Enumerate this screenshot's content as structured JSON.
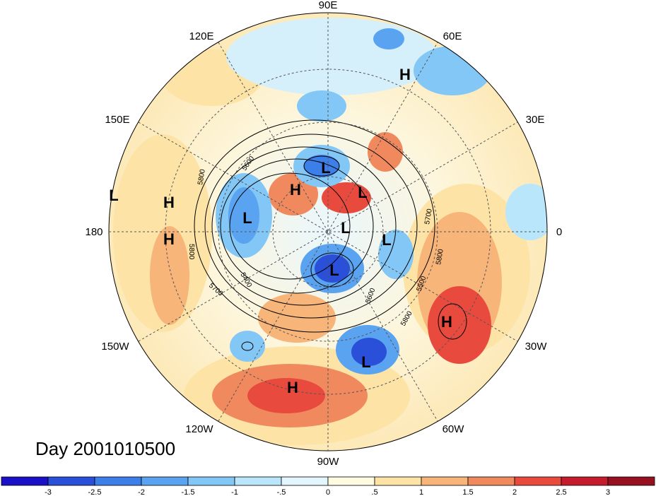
{
  "title": "Day 2001010500",
  "longitude_labels": [
    "90E",
    "120E",
    "60E",
    "150E",
    "30E",
    "180",
    "0",
    "150W",
    "30W",
    "120W",
    "60W",
    "90W"
  ],
  "pressure_centers": [
    {
      "type": "H",
      "label": "H"
    },
    {
      "type": "L",
      "label": "L"
    },
    {
      "type": "L",
      "label": "L"
    },
    {
      "type": "H",
      "label": "H"
    },
    {
      "type": "H",
      "label": "H"
    },
    {
      "type": "L",
      "label": "L"
    },
    {
      "type": "H",
      "label": "H"
    },
    {
      "type": "L",
      "label": "L"
    },
    {
      "type": "L",
      "label": "L"
    },
    {
      "type": "L",
      "label": "L"
    },
    {
      "type": "L",
      "label": "L"
    },
    {
      "type": "L",
      "label": "L"
    },
    {
      "type": "H",
      "label": "H"
    },
    {
      "type": "H",
      "label": "H"
    }
  ],
  "contour_labels": [
    "5800",
    "5600",
    "5800",
    "5400",
    "5700",
    "5800",
    "5800",
    "5700",
    "5500",
    "5600"
  ],
  "colorbar": {
    "ticks": [
      "-3",
      "-2.5",
      "-2",
      "-1.5",
      "-1",
      "-.5",
      "0",
      ".5",
      "1",
      "1.5",
      "2",
      "2.5",
      "3"
    ],
    "colors": [
      "#1a10c8",
      "#2a4fd9",
      "#3d7fe8",
      "#5aa3f0",
      "#83c7f6",
      "#b9e6fb",
      "#e4f6fd",
      "#fffbe0",
      "#fde4a6",
      "#f7b57a",
      "#f08a5e",
      "#e84a3e",
      "#c41c2c",
      "#97101f"
    ]
  }
}
